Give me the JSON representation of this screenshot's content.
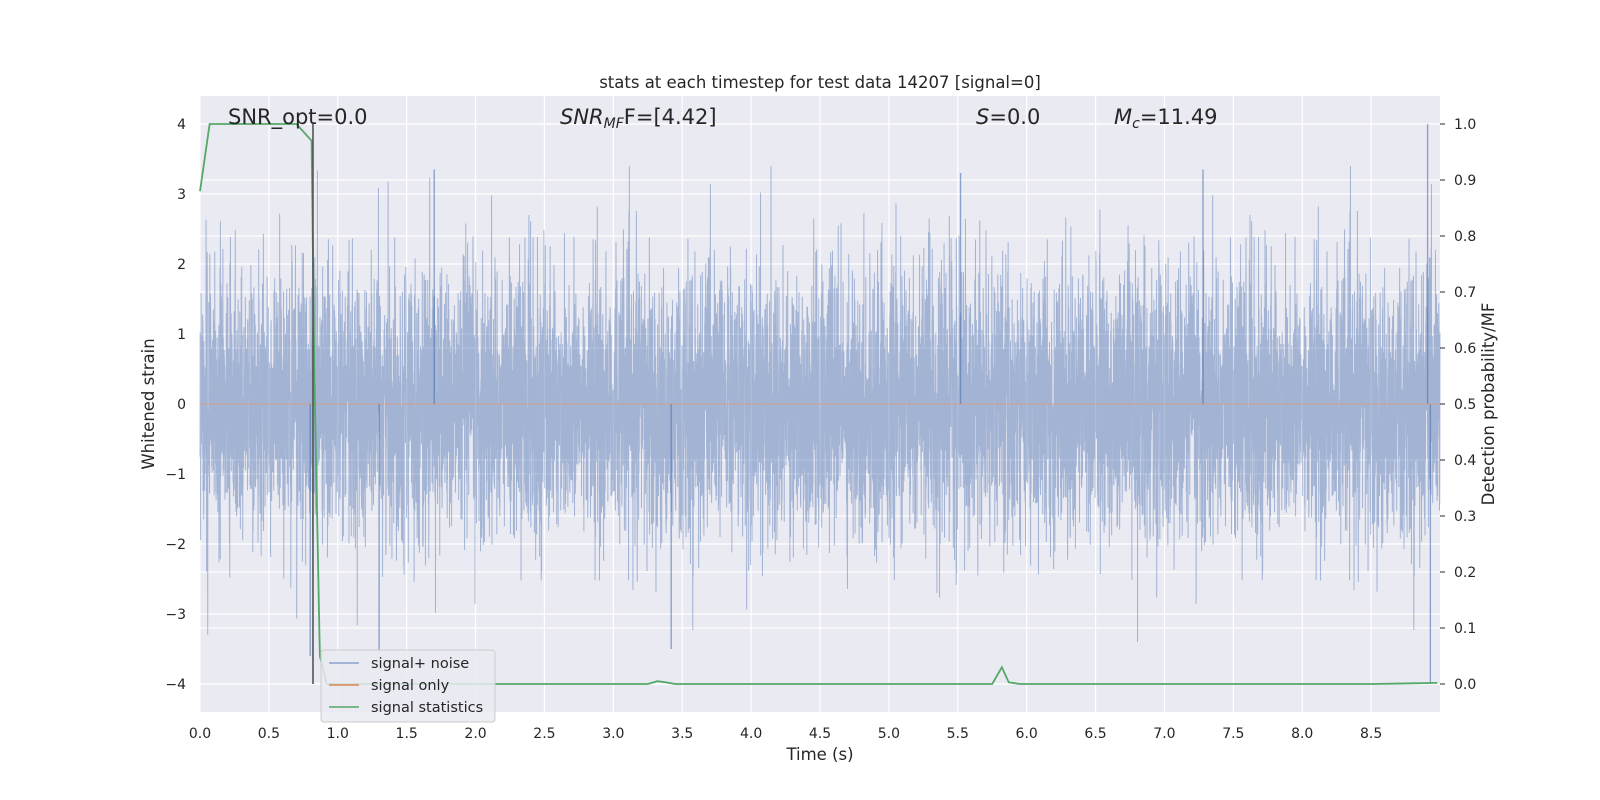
{
  "chart_data": {
    "type": "line",
    "title": "stats at each timestep for test data 14207 [signal=0]",
    "xlabel": "Time (s)",
    "ylabel": "Whitened strain",
    "ylabel_right": "Detection probability/MF",
    "xlim": [
      0.0,
      9.0
    ],
    "ylim_left": [
      -4.4,
      4.4
    ],
    "ylim_right": [
      -0.05,
      1.05
    ],
    "x_ticks": [
      "0.0",
      "0.5",
      "1.0",
      "1.5",
      "2.0",
      "2.5",
      "3.0",
      "3.5",
      "4.0",
      "4.5",
      "5.0",
      "5.5",
      "6.0",
      "6.5",
      "7.0",
      "7.5",
      "8.0",
      "8.5"
    ],
    "y_left_ticks": [
      "4",
      "3",
      "2",
      "1",
      "0",
      "−1",
      "−2",
      "−3",
      "−4"
    ],
    "y_right_ticks": [
      "1.0",
      "0.9",
      "0.8",
      "0.7",
      "0.6",
      "0.5",
      "0.4",
      "0.3",
      "0.2",
      "0.1",
      "0.0"
    ],
    "grid": true,
    "annotations": [
      {
        "label": "SNR_opt=0.0"
      },
      {
        "label_main": "SNR",
        "label_sub": "MF",
        "label_tail": "F=[4.42]"
      },
      {
        "label_main": "S",
        "label_tail": "=0.0"
      },
      {
        "label_main": "M",
        "label_sub": "c",
        "label_tail": "=11.49"
      }
    ],
    "vertical_marker_x": 0.82,
    "legend_position": "lower-left",
    "colors": {
      "signal_noise": "#4c72b0",
      "signal_only": "#dd8452",
      "signal_statistics": "#55a868",
      "marker": "#555555",
      "axes_bg": "#eaeaf2",
      "grid": "#ffffff"
    },
    "series": [
      {
        "name": "signal+ noise",
        "axis": "left",
        "note_of_shape": "dense whitened noise, amplitude ~±1.6 typical with spikes to ±4",
        "peak_values": [
          {
            "x": 8.91,
            "y": 4.0
          },
          {
            "x": 8.93,
            "y": -4.0
          },
          {
            "x": 0.8,
            "y": -3.6
          },
          {
            "x": 1.3,
            "y": -3.55
          },
          {
            "x": 3.42,
            "y": -3.5
          },
          {
            "x": 1.7,
            "y": 3.35
          },
          {
            "x": 5.52,
            "y": 3.3
          },
          {
            "x": 7.28,
            "y": 3.35
          }
        ]
      },
      {
        "name": "signal only",
        "axis": "left",
        "x": [
          0.0,
          9.0
        ],
        "y": [
          0.0,
          0.0
        ]
      },
      {
        "name": "signal statistics",
        "axis": "right",
        "x": [
          0.0,
          0.07,
          0.12,
          0.5,
          0.7,
          0.81,
          0.83,
          0.87,
          0.92,
          1.0,
          2.0,
          3.0,
          3.25,
          3.32,
          3.38,
          3.45,
          4.0,
          5.0,
          5.7,
          5.75,
          5.82,
          5.87,
          5.95,
          6.5,
          7.5,
          8.5,
          8.98
        ],
        "y": [
          0.88,
          1.0,
          1.0,
          1.0,
          1.0,
          0.97,
          0.55,
          0.05,
          0.0,
          0.0,
          0.0,
          0.0,
          0.0,
          0.005,
          0.003,
          0.0,
          0.0,
          0.0,
          0.0,
          0.0,
          0.03,
          0.003,
          0.0,
          0.0,
          0.0,
          0.0,
          0.002
        ]
      }
    ]
  }
}
